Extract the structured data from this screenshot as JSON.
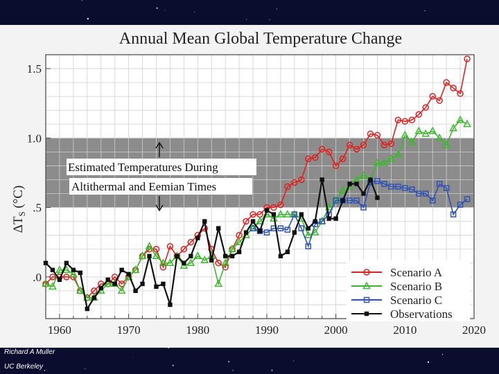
{
  "footer": {
    "name": "Richard A Muller",
    "org": "UC Berkeley"
  },
  "chart_data": {
    "type": "line",
    "title": "Annual Mean Global Temperature Change",
    "ylabel": "ΔT",
    "ylabel_sub": "S",
    "ylabel_unit": " (°C)",
    "xlim": [
      1958,
      2020
    ],
    "ylim": [
      -0.3,
      1.6
    ],
    "x_ticks": [
      1960,
      1970,
      1980,
      1990,
      2000,
      2010,
      2020
    ],
    "y_ticks": [
      {
        "value": 0.0,
        "label": ".0"
      },
      {
        "value": 0.5,
        "label": ".5"
      },
      {
        "value": 1.0,
        "label": "1.0"
      },
      {
        "value": 1.5,
        "label": "1.5"
      }
    ],
    "grid": true,
    "shaded_band": {
      "y_from": 0.5,
      "y_to": 1.0,
      "color": "#8c8c8c",
      "label_line1": "Estimated Temperatures During",
      "label_line2": "Altithermal and Eemian Times"
    },
    "legend_position": "bottom-right",
    "series": [
      {
        "name": "Scenario A",
        "color": "#e0201e",
        "marker": "circle",
        "points": [
          [
            1958,
            -0.05
          ],
          [
            1959,
            0.0
          ],
          [
            1960,
            0.0
          ],
          [
            1961,
            0.0
          ],
          [
            1962,
            0.0
          ],
          [
            1963,
            -0.1
          ],
          [
            1964,
            -0.15
          ],
          [
            1965,
            -0.1
          ],
          [
            1966,
            -0.05
          ],
          [
            1967,
            -0.05
          ],
          [
            1968,
            0.0
          ],
          [
            1969,
            -0.05
          ],
          [
            1970,
            0.0
          ],
          [
            1971,
            0.05
          ],
          [
            1972,
            0.15
          ],
          [
            1973,
            0.2
          ],
          [
            1974,
            0.2
          ],
          [
            1975,
            0.07
          ],
          [
            1976,
            0.22
          ],
          [
            1977,
            0.15
          ],
          [
            1978,
            0.2
          ],
          [
            1979,
            0.25
          ],
          [
            1980,
            0.3
          ],
          [
            1981,
            0.35
          ],
          [
            1982,
            0.2
          ],
          [
            1983,
            0.1
          ],
          [
            1984,
            0.07
          ],
          [
            1985,
            0.2
          ],
          [
            1986,
            0.3
          ],
          [
            1987,
            0.4
          ],
          [
            1988,
            0.45
          ],
          [
            1989,
            0.45
          ],
          [
            1990,
            0.5
          ],
          [
            1991,
            0.5
          ],
          [
            1992,
            0.52
          ],
          [
            1993,
            0.65
          ],
          [
            1994,
            0.68
          ],
          [
            1995,
            0.7
          ],
          [
            1996,
            0.85
          ],
          [
            1997,
            0.86
          ],
          [
            1998,
            0.92
          ],
          [
            1999,
            0.9
          ],
          [
            2000,
            0.8
          ],
          [
            2001,
            0.85
          ],
          [
            2002,
            0.95
          ],
          [
            2003,
            0.92
          ],
          [
            2004,
            0.95
          ],
          [
            2005,
            1.03
          ],
          [
            2006,
            1.02
          ],
          [
            2007,
            0.95
          ],
          [
            2008,
            0.96
          ],
          [
            2009,
            1.13
          ],
          [
            2010,
            1.12
          ],
          [
            2011,
            1.13
          ],
          [
            2012,
            1.17
          ],
          [
            2013,
            1.22
          ],
          [
            2014,
            1.3
          ],
          [
            2015,
            1.27
          ],
          [
            2016,
            1.4
          ],
          [
            2017,
            1.36
          ],
          [
            2018,
            1.32
          ],
          [
            2019,
            1.57
          ]
        ]
      },
      {
        "name": "Scenario B",
        "color": "#3cb82e",
        "marker": "triangle",
        "points": [
          [
            1958,
            -0.05
          ],
          [
            1959,
            -0.07
          ],
          [
            1960,
            0.05
          ],
          [
            1961,
            0.05
          ],
          [
            1962,
            0.02
          ],
          [
            1963,
            -0.1
          ],
          [
            1964,
            -0.15
          ],
          [
            1965,
            -0.15
          ],
          [
            1966,
            -0.1
          ],
          [
            1967,
            -0.05
          ],
          [
            1968,
            -0.05
          ],
          [
            1969,
            -0.1
          ],
          [
            1970,
            0.0
          ],
          [
            1971,
            0.05
          ],
          [
            1972,
            0.15
          ],
          [
            1973,
            0.22
          ],
          [
            1974,
            0.15
          ],
          [
            1975,
            0.1
          ],
          [
            1976,
            0.1
          ],
          [
            1977,
            0.15
          ],
          [
            1978,
            0.08
          ],
          [
            1979,
            0.1
          ],
          [
            1980,
            0.15
          ],
          [
            1981,
            0.12
          ],
          [
            1982,
            0.15
          ],
          [
            1983,
            -0.05
          ],
          [
            1984,
            0.1
          ],
          [
            1985,
            0.2
          ],
          [
            1986,
            0.25
          ],
          [
            1987,
            0.3
          ],
          [
            1988,
            0.35
          ],
          [
            1989,
            0.4
          ],
          [
            1990,
            0.45
          ],
          [
            1991,
            0.42
          ],
          [
            1992,
            0.45
          ],
          [
            1993,
            0.45
          ],
          [
            1994,
            0.45
          ],
          [
            1995,
            0.42
          ],
          [
            1996,
            0.3
          ],
          [
            1997,
            0.32
          ],
          [
            1998,
            0.4
          ],
          [
            1999,
            0.5
          ],
          [
            2000,
            0.55
          ],
          [
            2001,
            0.62
          ],
          [
            2002,
            0.65
          ],
          [
            2003,
            0.7
          ],
          [
            2004,
            0.73
          ],
          [
            2005,
            0.7
          ],
          [
            2006,
            0.82
          ],
          [
            2007,
            0.82
          ],
          [
            2008,
            0.85
          ],
          [
            2009,
            0.88
          ],
          [
            2010,
            1.02
          ],
          [
            2011,
            0.97
          ],
          [
            2012,
            1.05
          ],
          [
            2013,
            1.03
          ],
          [
            2014,
            1.05
          ],
          [
            2015,
            1.0
          ],
          [
            2016,
            0.95
          ],
          [
            2017,
            1.07
          ],
          [
            2018,
            1.13
          ],
          [
            2019,
            1.1
          ]
        ]
      },
      {
        "name": "Scenario C",
        "color": "#2f52b5",
        "marker": "square",
        "points": [
          [
            1988,
            0.35
          ],
          [
            1989,
            0.33
          ],
          [
            1990,
            0.32
          ],
          [
            1991,
            0.35
          ],
          [
            1992,
            0.35
          ],
          [
            1993,
            0.34
          ],
          [
            1994,
            0.45
          ],
          [
            1995,
            0.35
          ],
          [
            1996,
            0.22
          ],
          [
            1997,
            0.38
          ],
          [
            1998,
            0.4
          ],
          [
            1999,
            0.45
          ],
          [
            2000,
            0.55
          ],
          [
            2001,
            0.55
          ],
          [
            2002,
            0.55
          ],
          [
            2003,
            0.55
          ],
          [
            2004,
            0.5
          ],
          [
            2005,
            0.68
          ],
          [
            2006,
            0.69
          ],
          [
            2007,
            0.67
          ],
          [
            2008,
            0.65
          ],
          [
            2009,
            0.65
          ],
          [
            2010,
            0.64
          ],
          [
            2011,
            0.63
          ],
          [
            2012,
            0.6
          ],
          [
            2013,
            0.6
          ],
          [
            2014,
            0.55
          ],
          [
            2015,
            0.67
          ],
          [
            2016,
            0.64
          ],
          [
            2017,
            0.45
          ],
          [
            2018,
            0.52
          ],
          [
            2019,
            0.56
          ]
        ]
      },
      {
        "name": "Observations",
        "color": "#111111",
        "marker": "filled-square",
        "points": [
          [
            1958,
            0.1
          ],
          [
            1959,
            0.05
          ],
          [
            1960,
            -0.02
          ],
          [
            1961,
            0.1
          ],
          [
            1962,
            0.05
          ],
          [
            1963,
            0.03
          ],
          [
            1964,
            -0.23
          ],
          [
            1965,
            -0.15
          ],
          [
            1966,
            -0.08
          ],
          [
            1967,
            -0.02
          ],
          [
            1968,
            -0.05
          ],
          [
            1969,
            0.05
          ],
          [
            1970,
            0.02
          ],
          [
            1971,
            -0.1
          ],
          [
            1972,
            -0.05
          ],
          [
            1973,
            0.15
          ],
          [
            1974,
            -0.07
          ],
          [
            1975,
            -0.05
          ],
          [
            1976,
            -0.2
          ],
          [
            1977,
            0.15
          ],
          [
            1978,
            0.1
          ],
          [
            1979,
            0.15
          ],
          [
            1980,
            0.28
          ],
          [
            1981,
            0.4
          ],
          [
            1982,
            0.12
          ],
          [
            1983,
            0.35
          ],
          [
            1984,
            0.15
          ],
          [
            1985,
            0.15
          ],
          [
            1986,
            0.18
          ],
          [
            1987,
            0.32
          ],
          [
            1988,
            0.4
          ],
          [
            1989,
            0.33
          ],
          [
            1990,
            0.48
          ],
          [
            1991,
            0.45
          ],
          [
            1992,
            0.15
          ],
          [
            1993,
            0.18
          ],
          [
            1994,
            0.32
          ],
          [
            1995,
            0.45
          ],
          [
            1996,
            0.35
          ],
          [
            1997,
            0.4
          ],
          [
            1998,
            0.7
          ],
          [
            1999,
            0.42
          ],
          [
            2000,
            0.42
          ],
          [
            2001,
            0.55
          ],
          [
            2002,
            0.67
          ],
          [
            2003,
            0.67
          ],
          [
            2004,
            0.6
          ],
          [
            2005,
            0.7
          ],
          [
            2006,
            0.57
          ]
        ]
      }
    ]
  }
}
